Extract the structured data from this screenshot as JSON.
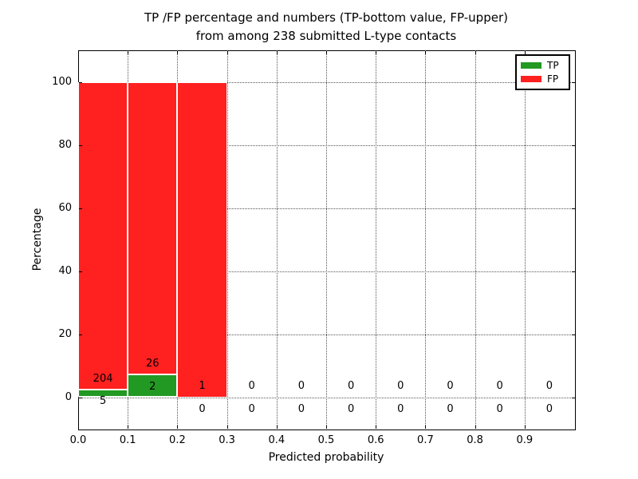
{
  "title": {
    "line1": "TP /FP percentage and numbers (TP-bottom value, FP-upper)",
    "line2": "from among 238 submitted L-type contacts"
  },
  "axes": {
    "ylabel": "Percentage",
    "xlabel": "Predicted probability",
    "yticks": [
      0,
      20,
      40,
      60,
      80,
      100
    ],
    "xtick_labels": [
      "0.0",
      "0.1",
      "0.2",
      "0.3",
      "0.4",
      "0.5",
      "0.6",
      "0.7",
      "0.8",
      "0.9"
    ]
  },
  "legend": {
    "items": [
      {
        "label": "TP",
        "color": "#229922"
      },
      {
        "label": "FP",
        "color": "#ff2020"
      }
    ]
  },
  "colors": {
    "tp": "#229922",
    "fp": "#ff2020",
    "grid": "#555555",
    "text": "#000000"
  },
  "chart_data": {
    "type": "bar",
    "stacked": true,
    "title": "TP /FP percentage and numbers (TP-bottom value, FP-upper) from among 238 submitted L-type contacts",
    "xlabel": "Predicted probability",
    "ylabel": "Percentage",
    "xlim": [
      0,
      1
    ],
    "ylim": [
      -10,
      110
    ],
    "grid": true,
    "legend_position": "upper right",
    "total_submitted_contacts": 238,
    "bin_width": 0.1,
    "bins": [
      {
        "x_start": 0.0,
        "x_end": 0.1,
        "tp_count": 5,
        "fp_count": 204,
        "tp_pct": 2.4,
        "fp_pct": 97.6
      },
      {
        "x_start": 0.1,
        "x_end": 0.2,
        "tp_count": 2,
        "fp_count": 26,
        "tp_pct": 7.1,
        "fp_pct": 92.9
      },
      {
        "x_start": 0.2,
        "x_end": 0.3,
        "tp_count": 0,
        "fp_count": 1,
        "tp_pct": 0.0,
        "fp_pct": 100.0
      },
      {
        "x_start": 0.3,
        "x_end": 0.4,
        "tp_count": 0,
        "fp_count": 0,
        "tp_pct": 0.0,
        "fp_pct": 0.0
      },
      {
        "x_start": 0.4,
        "x_end": 0.5,
        "tp_count": 0,
        "fp_count": 0,
        "tp_pct": 0.0,
        "fp_pct": 0.0
      },
      {
        "x_start": 0.5,
        "x_end": 0.6,
        "tp_count": 0,
        "fp_count": 0,
        "tp_pct": 0.0,
        "fp_pct": 0.0
      },
      {
        "x_start": 0.6,
        "x_end": 0.7,
        "tp_count": 0,
        "fp_count": 0,
        "tp_pct": 0.0,
        "fp_pct": 0.0
      },
      {
        "x_start": 0.7,
        "x_end": 0.8,
        "tp_count": 0,
        "fp_count": 0,
        "tp_pct": 0.0,
        "fp_pct": 0.0
      },
      {
        "x_start": 0.8,
        "x_end": 0.9,
        "tp_count": 0,
        "fp_count": 0,
        "tp_pct": 0.0,
        "fp_pct": 0.0
      },
      {
        "x_start": 0.9,
        "x_end": 1.0,
        "tp_count": 0,
        "fp_count": 0,
        "tp_pct": 0.0,
        "fp_pct": 0.0
      }
    ],
    "series": [
      {
        "name": "TP",
        "values_pct": [
          2.4,
          7.1,
          0,
          0,
          0,
          0,
          0,
          0,
          0,
          0
        ],
        "counts": [
          5,
          2,
          0,
          0,
          0,
          0,
          0,
          0,
          0,
          0
        ]
      },
      {
        "name": "FP",
        "values_pct": [
          97.6,
          92.9,
          100,
          0,
          0,
          0,
          0,
          0,
          0,
          0
        ],
        "counts": [
          204,
          26,
          1,
          0,
          0,
          0,
          0,
          0,
          0,
          0
        ]
      }
    ]
  }
}
